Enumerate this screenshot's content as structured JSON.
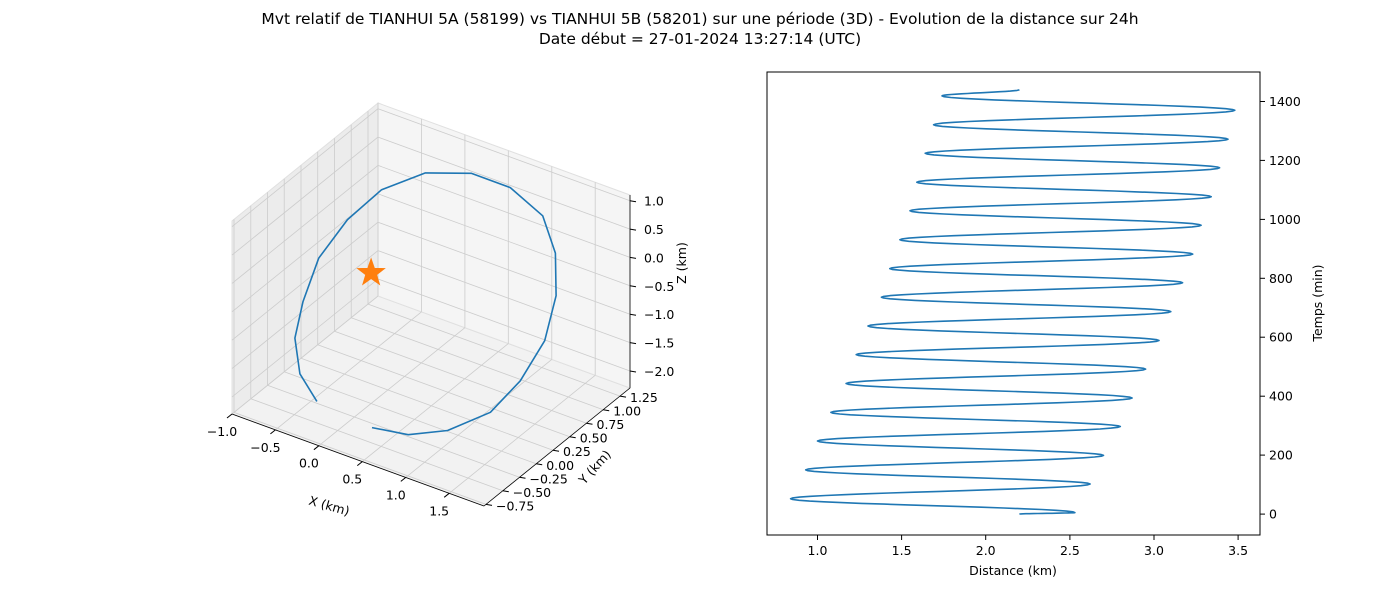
{
  "figure": {
    "title_line1": "Mvt relatif de TIANHUI 5A (58199) vs TIANHUI 5B (58201) sur une période (3D) - Evolution de la distance sur 24h",
    "title_line2": "Date début = 27-01-2024 13:27:14 (UTC)"
  },
  "colors": {
    "series": "#1f77b4",
    "marker": "#ff7f0e",
    "pane": "#f2f2f2",
    "grid": "#cccccc"
  },
  "chart_data": [
    {
      "type": "line",
      "projection": "3d",
      "series_name": "",
      "xlabel": "X (km)",
      "ylabel": "Y (km)",
      "zlabel": "Z (km)",
      "xticks": [
        "−1.0",
        "−0.5",
        "0.0",
        "0.5",
        "1.0",
        "1.5"
      ],
      "yticks": [
        "−0.75",
        "−0.50",
        "−0.25",
        "0.00",
        "0.25",
        "0.50",
        "0.75",
        "1.00",
        "1.25"
      ],
      "zticks": [
        "1.0",
        "0.5",
        "0.0",
        "−0.5",
        "−1.0",
        "−1.5",
        "−2.0"
      ],
      "xlim": [
        -1.0,
        1.9
      ],
      "ylim": [
        -0.78,
        1.4
      ],
      "zlim": [
        -2.3,
        1.1
      ],
      "grid": true,
      "marker_point": {
        "x": 0,
        "y": 0,
        "z": 0,
        "shape": "star"
      },
      "points": [
        {
          "x": 0.55,
          "y": -0.7,
          "z": -1.75
        },
        {
          "x": 0.85,
          "y": -0.55,
          "z": -1.85
        },
        {
          "x": 1.15,
          "y": -0.35,
          "z": -1.8
        },
        {
          "x": 1.45,
          "y": -0.1,
          "z": -1.55
        },
        {
          "x": 1.6,
          "y": 0.15,
          "z": -1.15
        },
        {
          "x": 1.65,
          "y": 0.45,
          "z": -0.7
        },
        {
          "x": 1.55,
          "y": 0.75,
          "z": -0.25
        },
        {
          "x": 1.35,
          "y": 1.0,
          "z": 0.15
        },
        {
          "x": 1.05,
          "y": 1.2,
          "z": 0.45
        },
        {
          "x": 0.6,
          "y": 1.3,
          "z": 0.6
        },
        {
          "x": 0.15,
          "y": 1.3,
          "z": 0.6
        },
        {
          "x": -0.3,
          "y": 1.2,
          "z": 0.45
        },
        {
          "x": -0.65,
          "y": 1.0,
          "z": 0.15
        },
        {
          "x": -0.85,
          "y": 0.75,
          "z": -0.25
        },
        {
          "x": -0.95,
          "y": 0.45,
          "z": -0.7
        },
        {
          "x": -0.9,
          "y": 0.15,
          "z": -1.15
        },
        {
          "x": -0.8,
          "y": -0.1,
          "z": -1.5
        },
        {
          "x": -0.55,
          "y": -0.35,
          "z": -1.75
        },
        {
          "x": -0.2,
          "y": -0.55,
          "z": -1.85
        }
      ]
    },
    {
      "type": "line",
      "series_name": "",
      "xlabel": "Distance (km)",
      "ylabel": "Temps (min)",
      "xticks": [
        1.0,
        1.5,
        2.0,
        2.5,
        3.0,
        3.5
      ],
      "yticks": [
        0,
        200,
        400,
        600,
        800,
        1000,
        1200,
        1400
      ],
      "xlim": [
        0.7,
        3.63
      ],
      "ylim": [
        -71,
        1500
      ],
      "grid": false,
      "y_axis_side": "right",
      "distance_extrema": [
        {
          "t": 0,
          "d": 2.2
        },
        {
          "t": 5,
          "d": 2.53
        },
        {
          "t": 52,
          "d": 0.84
        },
        {
          "t": 102,
          "d": 2.62
        },
        {
          "t": 150,
          "d": 0.93
        },
        {
          "t": 199,
          "d": 2.7
        },
        {
          "t": 248,
          "d": 1.0
        },
        {
          "t": 297,
          "d": 2.8
        },
        {
          "t": 345,
          "d": 1.08
        },
        {
          "t": 394,
          "d": 2.87
        },
        {
          "t": 443,
          "d": 1.17
        },
        {
          "t": 492,
          "d": 2.95
        },
        {
          "t": 541,
          "d": 1.23
        },
        {
          "t": 589,
          "d": 3.03
        },
        {
          "t": 638,
          "d": 1.3
        },
        {
          "t": 687,
          "d": 3.1
        },
        {
          "t": 736,
          "d": 1.38
        },
        {
          "t": 785,
          "d": 3.17
        },
        {
          "t": 833,
          "d": 1.43
        },
        {
          "t": 882,
          "d": 3.23
        },
        {
          "t": 931,
          "d": 1.49
        },
        {
          "t": 980,
          "d": 3.28
        },
        {
          "t": 1029,
          "d": 1.55
        },
        {
          "t": 1077,
          "d": 3.34
        },
        {
          "t": 1126,
          "d": 1.59
        },
        {
          "t": 1175,
          "d": 3.39
        },
        {
          "t": 1224,
          "d": 1.64
        },
        {
          "t": 1272,
          "d": 3.44
        },
        {
          "t": 1321,
          "d": 1.69
        },
        {
          "t": 1370,
          "d": 3.48
        },
        {
          "t": 1419,
          "d": 1.74
        },
        {
          "t": 1440,
          "d": 2.2
        }
      ]
    }
  ]
}
